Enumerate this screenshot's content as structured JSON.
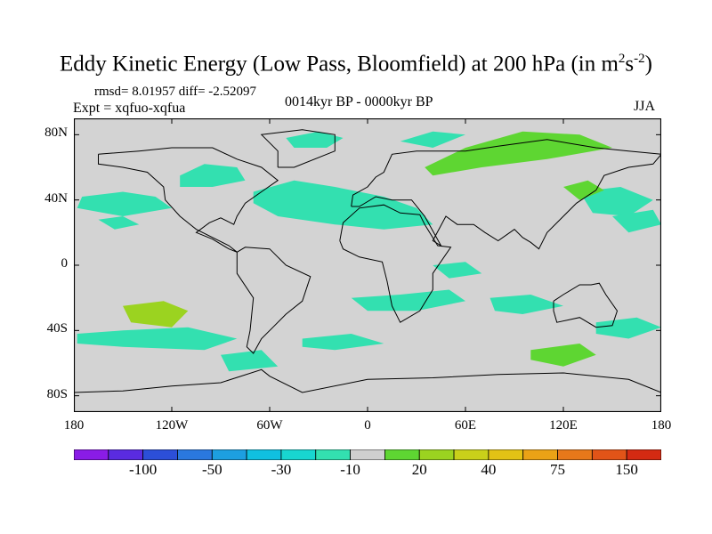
{
  "header": {
    "title_main": "Eddy Kinetic Energy (Low Pass, Bloomfield) at 200 hPa (in m",
    "title_sup1": "2",
    "title_s": "s",
    "title_sup2": "-2",
    "title_close": ")",
    "rmsd": "rmsd= 8.01957 diff= -2.52097",
    "experiment": "Expt = xqfuo-xqfua",
    "period": "0014kyr BP - 0000kyr BP",
    "season": "JJA"
  },
  "map": {
    "background_color": "#d3d3d3",
    "lon_range": [
      -180,
      180
    ],
    "lat_range": [
      -90,
      90
    ],
    "y_tick_labels": [
      {
        "label": "80N",
        "lat": 80
      },
      {
        "label": "40N",
        "lat": 40
      },
      {
        "label": "0",
        "lat": 0
      },
      {
        "label": "40S",
        "lat": -40
      },
      {
        "label": "80S",
        "lat": -80
      }
    ],
    "x_tick_labels": [
      {
        "label": "180",
        "lon": -180
      },
      {
        "label": "120W",
        "lon": -120
      },
      {
        "label": "60W",
        "lon": -60
      },
      {
        "label": "0",
        "lon": 0
      },
      {
        "label": "60E",
        "lon": 60
      },
      {
        "label": "120E",
        "lon": 120
      },
      {
        "label": "180",
        "lon": 180
      }
    ]
  },
  "colorbar": {
    "colors": [
      "#8a1ce6",
      "#5a2be0",
      "#2c4fd8",
      "#2a78de",
      "#1d9fe0",
      "#10c0e0",
      "#18d6d0",
      "#33e0b0",
      "#cfcfcf",
      "#5ed632",
      "#9bd320",
      "#c9d01a",
      "#e3c215",
      "#eaa216",
      "#e7781a",
      "#e15418",
      "#d42a12"
    ],
    "labels": [
      {
        "label": "-100",
        "boundary": 2
      },
      {
        "label": "-50",
        "boundary": 4
      },
      {
        "label": "-30",
        "boundary": 6
      },
      {
        "label": "-10",
        "boundary": 8
      },
      {
        "label": "20",
        "boundary": 10
      },
      {
        "label": "40",
        "boundary": 12
      },
      {
        "label": "75",
        "boundary": 14
      },
      {
        "label": "150",
        "boundary": 16
      }
    ]
  },
  "anomaly_regions": [
    {
      "name": "north-pacific-blob",
      "color": "#33e0b0",
      "lonlat": [
        [
          -115,
          55
        ],
        [
          -100,
          62
        ],
        [
          -80,
          60
        ],
        [
          -75,
          52
        ],
        [
          -95,
          48
        ],
        [
          -115,
          48
        ]
      ]
    },
    {
      "name": "north-pacific-west-blob",
      "color": "#33e0b0",
      "lonlat": [
        [
          -175,
          42
        ],
        [
          -150,
          45
        ],
        [
          -130,
          42
        ],
        [
          -120,
          35
        ],
        [
          -150,
          30
        ],
        [
          -178,
          35
        ]
      ]
    },
    {
      "name": "north-atlantic-blob",
      "color": "#33e0b0",
      "lonlat": [
        [
          -70,
          45
        ],
        [
          -45,
          52
        ],
        [
          -20,
          48
        ],
        [
          10,
          42
        ],
        [
          30,
          35
        ],
        [
          40,
          25
        ],
        [
          10,
          22
        ],
        [
          -20,
          25
        ],
        [
          -55,
          30
        ],
        [
          -70,
          38
        ]
      ]
    },
    {
      "name": "east-pacific-small",
      "color": "#33e0b0",
      "lonlat": [
        [
          -165,
          28
        ],
        [
          -150,
          30
        ],
        [
          -140,
          25
        ],
        [
          -155,
          22
        ]
      ]
    },
    {
      "name": "greenland-blob",
      "color": "#33e0b0",
      "lonlat": [
        [
          -50,
          78
        ],
        [
          -30,
          82
        ],
        [
          -15,
          78
        ],
        [
          -25,
          72
        ],
        [
          -45,
          72
        ]
      ]
    },
    {
      "name": "siberia-green",
      "color": "#5ed632",
      "lonlat": [
        [
          35,
          60
        ],
        [
          60,
          72
        ],
        [
          95,
          82
        ],
        [
          130,
          80
        ],
        [
          150,
          72
        ],
        [
          110,
          65
        ],
        [
          70,
          60
        ],
        [
          40,
          55
        ]
      ]
    },
    {
      "name": "barents-cyan",
      "color": "#33e0b0",
      "lonlat": [
        [
          20,
          76
        ],
        [
          40,
          82
        ],
        [
          60,
          80
        ],
        [
          40,
          72
        ]
      ]
    },
    {
      "name": "asia-blob",
      "color": "#33e0b0",
      "lonlat": [
        [
          130,
          45
        ],
        [
          155,
          48
        ],
        [
          175,
          40
        ],
        [
          160,
          30
        ],
        [
          138,
          32
        ]
      ]
    },
    {
      "name": "east-asia-green",
      "color": "#5ed632",
      "lonlat": [
        [
          120,
          48
        ],
        [
          135,
          52
        ],
        [
          145,
          46
        ],
        [
          130,
          40
        ]
      ]
    },
    {
      "name": "pacific-east-cyan",
      "color": "#33e0b0",
      "lonlat": [
        [
          150,
          30
        ],
        [
          175,
          34
        ],
        [
          180,
          25
        ],
        [
          160,
          20
        ]
      ]
    },
    {
      "name": "south-pacific-green",
      "color": "#9bd320",
      "lonlat": [
        [
          -150,
          -25
        ],
        [
          -125,
          -22
        ],
        [
          -110,
          -28
        ],
        [
          -120,
          -38
        ],
        [
          -145,
          -35
        ]
      ]
    },
    {
      "name": "south-pacific-cyan",
      "color": "#33e0b0",
      "lonlat": [
        [
          -178,
          -42
        ],
        [
          -150,
          -40
        ],
        [
          -110,
          -38
        ],
        [
          -80,
          -45
        ],
        [
          -100,
          -52
        ],
        [
          -150,
          -50
        ],
        [
          -178,
          -48
        ]
      ]
    },
    {
      "name": "south-atlantic-cyan",
      "color": "#33e0b0",
      "lonlat": [
        [
          -10,
          -20
        ],
        [
          20,
          -18
        ],
        [
          50,
          -15
        ],
        [
          60,
          -22
        ],
        [
          30,
          -28
        ],
        [
          0,
          -28
        ]
      ]
    },
    {
      "name": "south-atlantic-2",
      "color": "#33e0b0",
      "lonlat": [
        [
          -40,
          -45
        ],
        [
          -10,
          -42
        ],
        [
          10,
          -48
        ],
        [
          -20,
          -52
        ],
        [
          -40,
          -50
        ]
      ]
    },
    {
      "name": "indian-cyan",
      "color": "#33e0b0",
      "lonlat": [
        [
          75,
          -20
        ],
        [
          100,
          -18
        ],
        [
          120,
          -25
        ],
        [
          95,
          -30
        ],
        [
          78,
          -28
        ]
      ]
    },
    {
      "name": "indian-green",
      "color": "#5ed632",
      "lonlat": [
        [
          100,
          -52
        ],
        [
          130,
          -48
        ],
        [
          140,
          -55
        ],
        [
          120,
          -62
        ],
        [
          100,
          -58
        ]
      ]
    },
    {
      "name": "australia-cyan",
      "color": "#33e0b0",
      "lonlat": [
        [
          140,
          -35
        ],
        [
          165,
          -32
        ],
        [
          180,
          -38
        ],
        [
          160,
          -45
        ],
        [
          140,
          -42
        ]
      ]
    },
    {
      "name": "antarctic-cyan",
      "color": "#33e0b0",
      "lonlat": [
        [
          -90,
          -55
        ],
        [
          -65,
          -52
        ],
        [
          -55,
          -62
        ],
        0,
        [
          -85,
          -65
        ]
      ]
    },
    {
      "name": "equatorial-indian",
      "color": "#33e0b0",
      "lonlat": [
        [
          40,
          0
        ],
        [
          60,
          2
        ],
        [
          70,
          -5
        ],
        [
          50,
          -8
        ]
      ]
    }
  ]
}
